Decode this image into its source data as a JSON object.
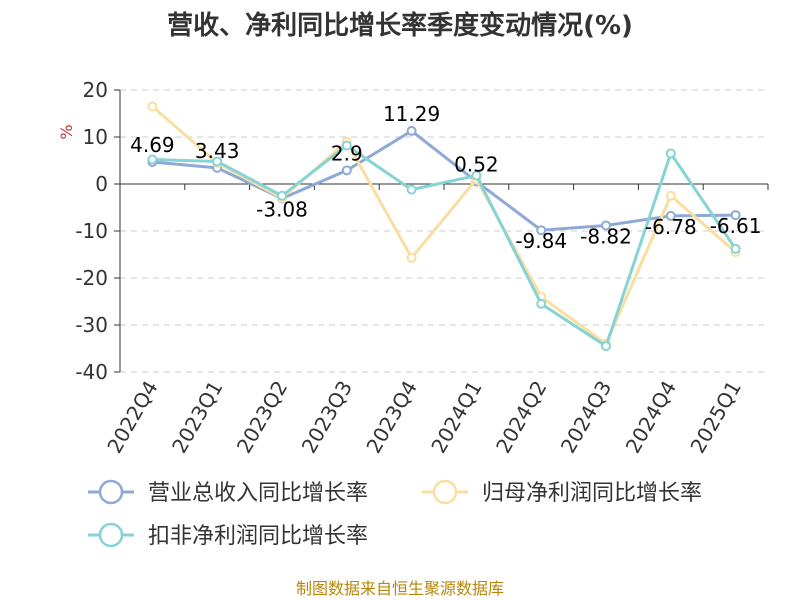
{
  "chart_data": {
    "type": "line",
    "title": "营收、净利同比增长率季度变动情况(%)",
    "ylabel": "%",
    "ylim": [
      -40,
      20
    ],
    "yticks": [
      20,
      10,
      0,
      -10,
      -20,
      -30,
      -40
    ],
    "categories": [
      "2022Q4",
      "2023Q1",
      "2023Q2",
      "2023Q3",
      "2023Q4",
      "2024Q1",
      "2024Q2",
      "2024Q3",
      "2024Q4",
      "2025Q1"
    ],
    "grid": true,
    "legend_position": "bottom",
    "series": [
      {
        "name": "营业总收入同比增长率",
        "color": "#8ea9d6",
        "values": [
          4.69,
          3.43,
          -3.08,
          2.9,
          11.29,
          0.52,
          -9.84,
          -8.82,
          -6.78,
          -6.61
        ],
        "labels": [
          "4.69",
          "3.43",
          "-3.08",
          "2.9",
          "11.29",
          "0.52",
          "-9.84",
          "-8.82",
          "-6.78",
          "-6.61"
        ]
      },
      {
        "name": "归母净利润同比增长率",
        "color": "#f9dea0",
        "values": [
          16.5,
          4.5,
          -3.0,
          9.0,
          -15.7,
          1.0,
          -24.0,
          -34.0,
          -2.5,
          -14.5
        ]
      },
      {
        "name": "扣非净利润同比增长率",
        "color": "#86d3d6",
        "values": [
          5.2,
          4.8,
          -2.5,
          8.2,
          -1.2,
          1.8,
          -25.5,
          -34.5,
          6.5,
          -13.8
        ]
      }
    ]
  },
  "footer": {
    "source": "制图数据来自恒生聚源数据库"
  }
}
